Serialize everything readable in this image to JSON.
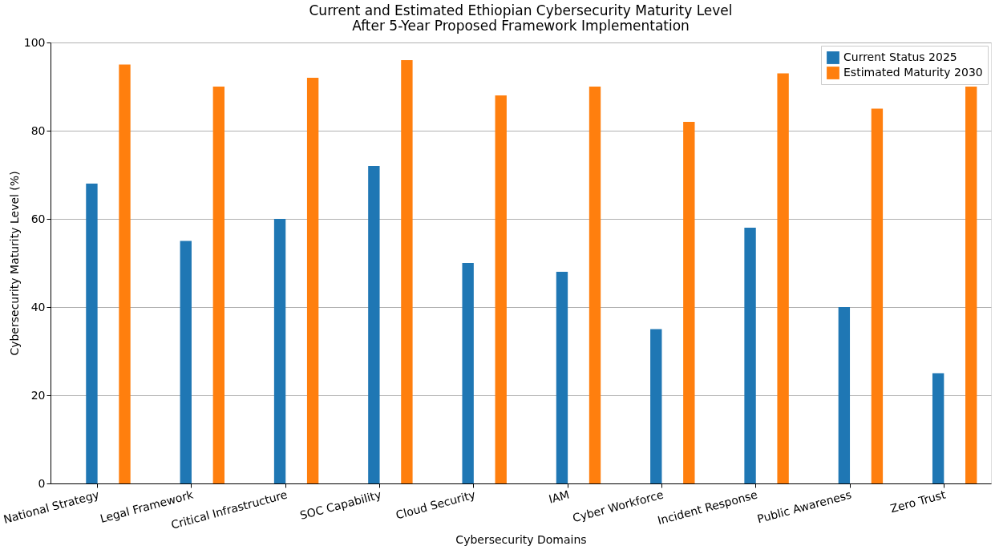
{
  "chart_data": {
    "type": "bar",
    "title": [
      "Current and Estimated Ethiopian Cybersecurity Maturity Level",
      "After 5-Year Proposed Framework Implementation"
    ],
    "xlabel": "Cybersecurity Domains",
    "ylabel": "Cybersecurity Maturity Level (%)",
    "categories": [
      "National Strategy",
      "Legal Framework",
      "Critical Infrastructure",
      "SOC Capability",
      "Cloud Security",
      "IAM",
      "Cyber Workforce",
      "Incident Response",
      "Public Awareness",
      "Zero Trust"
    ],
    "series": [
      {
        "name": "Current Status 2025",
        "color": "#1f77b4",
        "values": [
          68,
          55,
          60,
          72,
          50,
          48,
          35,
          58,
          40,
          25
        ]
      },
      {
        "name": "Estimated Maturity 2030",
        "color": "#ff7f0e",
        "values": [
          95,
          90,
          92,
          96,
          88,
          90,
          82,
          93,
          85,
          90
        ]
      }
    ],
    "ylim": [
      0,
      100
    ],
    "yticks": [
      0,
      20,
      40,
      60,
      80,
      100
    ],
    "grid": "y",
    "legend": "top right"
  }
}
